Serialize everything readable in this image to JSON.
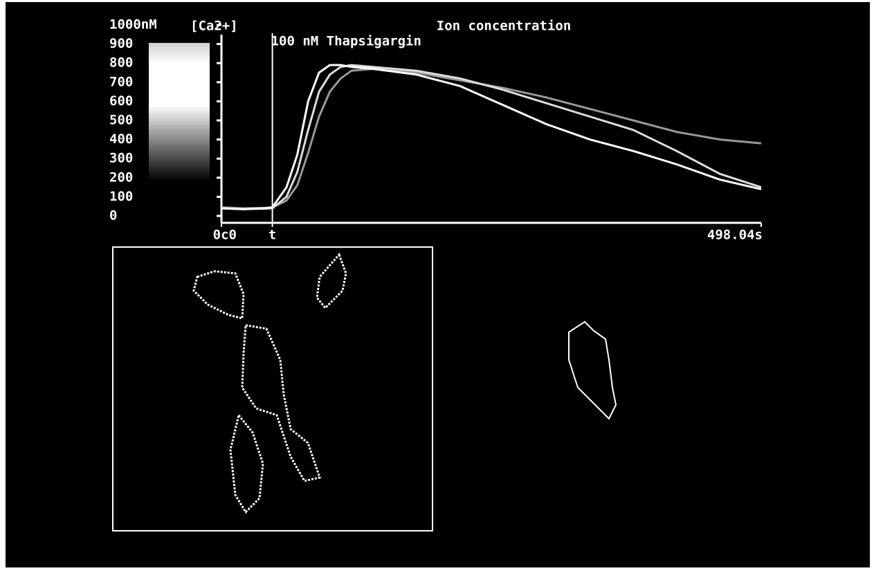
{
  "chart_data": {
    "type": "line",
    "title": "Ion concentration",
    "y_label": "[Ca2+]",
    "annotation": {
      "text": "100 nM Thapsigargin",
      "x": 47
    },
    "x": [
      0,
      20,
      40,
      47,
      60,
      70,
      80,
      90,
      100,
      110,
      120,
      140,
      180,
      220,
      260,
      300,
      340,
      380,
      420,
      460,
      498.04
    ],
    "series": [
      {
        "color": "#ffffff",
        "values": [
          40,
          35,
          40,
          45,
          150,
          320,
          600,
          750,
          790,
          790,
          780,
          770,
          740,
          680,
          580,
          480,
          400,
          340,
          270,
          190,
          140
        ]
      },
      {
        "color": "#dddddd",
        "values": [
          40,
          35,
          38,
          40,
          100,
          230,
          450,
          650,
          740,
          780,
          790,
          780,
          760,
          720,
          660,
          590,
          520,
          450,
          340,
          220,
          150
        ]
      },
      {
        "color": "#999999",
        "values": [
          45,
          40,
          42,
          45,
          80,
          160,
          330,
          520,
          650,
          720,
          760,
          770,
          750,
          710,
          670,
          620,
          560,
          500,
          440,
          400,
          380
        ]
      }
    ],
    "xlim": [
      0,
      498.04
    ],
    "xticks": [
      {
        "value": 0,
        "label": "0c0"
      },
      {
        "value": 47,
        "label": "t"
      },
      {
        "value": 498.04,
        "label": "498.04s"
      }
    ],
    "ylim": [
      0,
      1000
    ],
    "yticks": [
      0,
      100,
      200,
      300,
      400,
      500,
      600,
      700,
      800,
      900,
      {
        "value": 1000,
        "label": "1000nM"
      }
    ]
  }
}
